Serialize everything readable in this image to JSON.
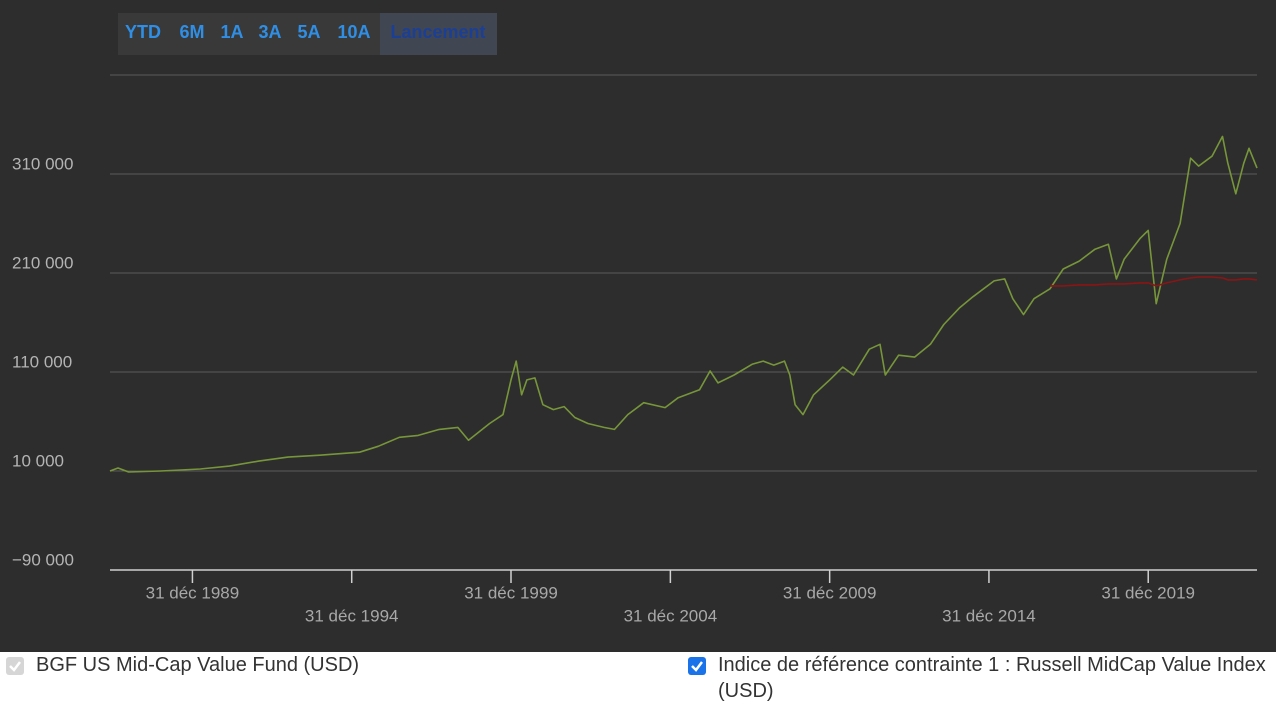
{
  "chart_data": {
    "type": "line",
    "range_buttons": [
      "YTD",
      "6M",
      "1A",
      "3A",
      "5A",
      "10A",
      "Lancement"
    ],
    "selected_range": 6,
    "x": [
      "1987-05-31",
      "1987-08-31",
      "1987-12-31",
      "1988-12-31",
      "1990-03-31",
      "1991-02-28",
      "1992-01-31",
      "1992-12-31",
      "1993-12-31",
      "1995-03-31",
      "1995-10-31",
      "1996-06-30",
      "1997-01-31",
      "1997-09-30",
      "1998-04-30",
      "1998-08-31",
      "1999-04-30",
      "1999-09-30",
      "1999-12-31",
      "2000-02-29",
      "2000-04-30",
      "2000-06-30",
      "2000-09-30",
      "2000-12-31",
      "2001-04-30",
      "2001-08-31",
      "2001-12-31",
      "2002-05-31",
      "2002-11-30",
      "2003-03-31",
      "2003-08-31",
      "2004-02-29",
      "2004-10-31",
      "2005-03-31",
      "2005-11-30",
      "2006-03-31",
      "2006-06-30",
      "2006-12-31",
      "2007-07-31",
      "2007-11-30",
      "2008-03-31",
      "2008-07-31",
      "2008-09-30",
      "2008-11-30",
      "2009-02-28",
      "2009-06-30",
      "2009-12-31",
      "2010-05-31",
      "2010-09-30",
      "2011-03-31",
      "2011-07-31",
      "2011-09-30",
      "2012-02-29",
      "2012-08-31",
      "2013-02-28",
      "2013-07-31",
      "2014-01-31",
      "2014-06-30",
      "2015-02-28",
      "2015-06-30",
      "2015-09-30",
      "2016-01-31",
      "2016-05-31",
      "2016-11-30",
      "2017-04-30",
      "2017-10-31",
      "2018-04-30",
      "2018-09-30",
      "2018-12-31",
      "2019-03-31",
      "2019-09-30",
      "2019-12-31",
      "2020-03-31",
      "2020-07-31",
      "2020-12-31",
      "2021-04-30",
      "2021-07-31",
      "2021-12-31",
      "2022-04-30",
      "2022-06-30",
      "2022-09-30",
      "2022-12-31",
      "2023-02-28",
      "2023-05-31"
    ],
    "series": [
      {
        "name": "BGF US Mid-Cap Value Fund (USD)",
        "color": "#77963a",
        "values": [
          10000,
          13000,
          9000,
          10000,
          12000,
          15000,
          20000,
          24000,
          26000,
          29000,
          35000,
          44000,
          46000,
          52000,
          54000,
          41000,
          58000,
          67000,
          102000,
          121000,
          87000,
          102000,
          104000,
          77000,
          72000,
          75000,
          64000,
          58000,
          54000,
          52000,
          67000,
          79000,
          74000,
          84000,
          92000,
          111000,
          99000,
          107000,
          118000,
          121000,
          117000,
          121000,
          107000,
          77000,
          67000,
          87000,
          102000,
          115000,
          107000,
          133000,
          138000,
          107000,
          127000,
          125000,
          138000,
          158000,
          175000,
          186000,
          202000,
          204000,
          184000,
          168000,
          184000,
          194000,
          214000,
          222000,
          234000,
          239000,
          204000,
          224000,
          245000,
          253000,
          179000,
          224000,
          260000,
          326000,
          318000,
          328000,
          348000,
          321000,
          290000,
          321000,
          336000,
          316000
        ]
      },
      {
        "name": "Indice de référence contrainte 1 : Russell MidCap Value Index (USD)",
        "color": "#8b1414",
        "values": [
          null,
          null,
          null,
          null,
          null,
          null,
          null,
          null,
          null,
          null,
          null,
          null,
          null,
          null,
          null,
          null,
          null,
          null,
          null,
          null,
          null,
          null,
          null,
          null,
          null,
          null,
          null,
          null,
          null,
          null,
          null,
          null,
          null,
          null,
          null,
          null,
          null,
          null,
          null,
          null,
          null,
          null,
          null,
          null,
          null,
          null,
          null,
          null,
          null,
          null,
          null,
          null,
          null,
          null,
          null,
          null,
          null,
          null,
          null,
          null,
          null,
          null,
          null,
          197000,
          197000,
          198000,
          198000,
          199000,
          199000,
          199000,
          200000,
          200000,
          197000,
          200000,
          203000,
          205000,
          206000,
          206000,
          205000,
          203000,
          203000,
          204000,
          204000,
          203000
        ]
      }
    ],
    "xlim": [
      "1987-05-31",
      "2023-05-31"
    ],
    "xticks": [
      {
        "value": "1989-12-31",
        "label": "31 déc 1989"
      },
      {
        "value": "1994-12-31",
        "label": "31 déc 1994"
      },
      {
        "value": "1999-12-31",
        "label": "31 déc 1999"
      },
      {
        "value": "2004-12-31",
        "label": "31 déc 2004"
      },
      {
        "value": "2009-12-31",
        "label": "31 déc 2009"
      },
      {
        "value": "2014-12-31",
        "label": "31 déc 2014"
      },
      {
        "value": "2019-12-31",
        "label": "31 déc 2019"
      }
    ],
    "ylim": [
      -90000,
      410000
    ],
    "yticks": [
      {
        "value": -90000,
        "label": "−90 000"
      },
      {
        "value": 10000,
        "label": "10 000"
      },
      {
        "value": 110000,
        "label": "110 000"
      },
      {
        "value": 210000,
        "label": "210 000"
      },
      {
        "value": 310000,
        "label": "310 000"
      }
    ],
    "grid": true
  }
}
